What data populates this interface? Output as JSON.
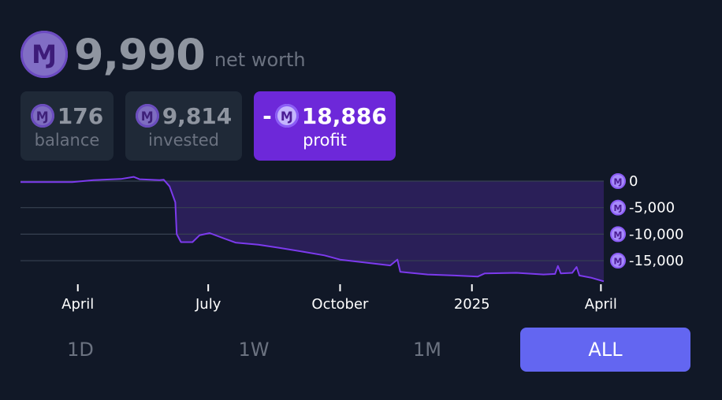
{
  "header": {
    "coin_icon": "mana-coin-icon",
    "net_worth": "9,990",
    "net_worth_label": "net worth"
  },
  "cards": {
    "balance": {
      "value": "176",
      "label": "balance"
    },
    "invested": {
      "value": "9,814",
      "label": "invested"
    },
    "profit": {
      "sign": "-",
      "value": "18,886",
      "label": "profit"
    }
  },
  "ranges": [
    {
      "label": "1D",
      "active": false
    },
    {
      "label": "1W",
      "active": false
    },
    {
      "label": "1M",
      "active": false
    },
    {
      "label": "ALL",
      "active": true
    }
  ],
  "colors": {
    "line": "#7c3aed",
    "area": "#2a1f58",
    "accent": "#6366f1",
    "profit_bg": "#6d28d9"
  },
  "chart_data": {
    "type": "area",
    "ylim": [
      -19000,
      0
    ],
    "yticks": [
      0,
      -5000,
      -10000,
      -15000
    ],
    "ytick_labels": [
      "0",
      "-5,000",
      "-10,000",
      "-15,000"
    ],
    "xticks": [
      "2024-04-01",
      "2024-07-01",
      "2024-10-01",
      "2025-01-01",
      "2025-04-01"
    ],
    "xtick_labels": [
      "April",
      "July",
      "October",
      "2025",
      "April"
    ],
    "xlim": [
      "2024-02-21",
      "2025-04-03"
    ],
    "grid": true,
    "series": [
      {
        "points": [
          [
            "2024-02-21",
            -200
          ],
          [
            "2024-03-10",
            -200
          ],
          [
            "2024-03-28",
            -180
          ],
          [
            "2024-04-12",
            200
          ],
          [
            "2024-05-01",
            400
          ],
          [
            "2024-05-10",
            800
          ],
          [
            "2024-05-14",
            350
          ],
          [
            "2024-05-28",
            200
          ],
          [
            "2024-05-31",
            250
          ],
          [
            "2024-06-04",
            -1000
          ],
          [
            "2024-06-08",
            -4000
          ],
          [
            "2024-06-09",
            -10000
          ],
          [
            "2024-06-12",
            -11500
          ],
          [
            "2024-06-20",
            -11500
          ],
          [
            "2024-06-25",
            -10200
          ],
          [
            "2024-07-02",
            -9800
          ],
          [
            "2024-07-12",
            -10800
          ],
          [
            "2024-07-20",
            -11600
          ],
          [
            "2024-08-05",
            -12000
          ],
          [
            "2024-08-20",
            -12600
          ],
          [
            "2024-09-05",
            -13300
          ],
          [
            "2024-09-20",
            -14000
          ],
          [
            "2024-10-01",
            -14800
          ],
          [
            "2024-10-20",
            -15400
          ],
          [
            "2024-11-05",
            -15900
          ],
          [
            "2024-11-10",
            -14800
          ],
          [
            "2024-11-12",
            -17100
          ],
          [
            "2024-12-01",
            -17600
          ],
          [
            "2024-12-20",
            -17800
          ],
          [
            "2025-01-05",
            -18000
          ],
          [
            "2025-01-10",
            -17400
          ],
          [
            "2025-02-01",
            -17300
          ],
          [
            "2025-02-20",
            -17600
          ],
          [
            "2025-02-28",
            -17500
          ],
          [
            "2025-03-02",
            -16000
          ],
          [
            "2025-03-04",
            -17400
          ],
          [
            "2025-03-12",
            -17300
          ],
          [
            "2025-03-15",
            -16200
          ],
          [
            "2025-03-17",
            -17800
          ],
          [
            "2025-03-25",
            -18200
          ],
          [
            "2025-04-03",
            -18900
          ]
        ]
      }
    ]
  }
}
